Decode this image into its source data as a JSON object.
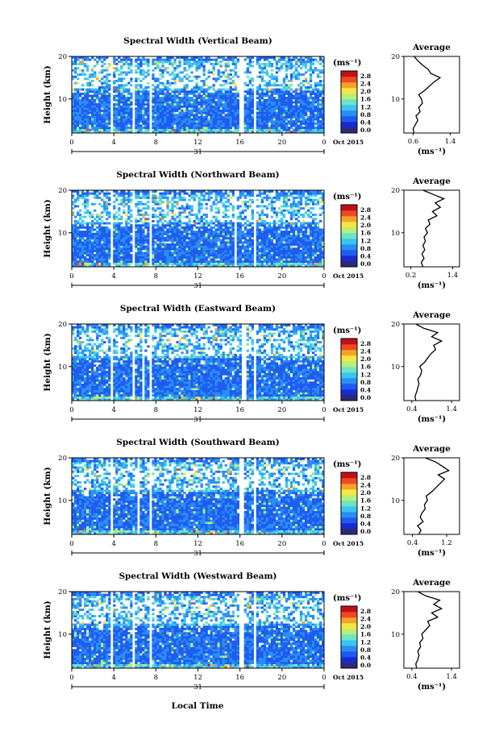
{
  "month_label": "Oct 2015",
  "date_label": "31",
  "xlabel": "Local Time",
  "ylabel": "Height (km)",
  "unit_label": "(ms⁻¹)",
  "avg_title": "Average",
  "avg_unit": "(ms⁻¹)",
  "colorbar_ticks": [
    "2.8",
    "2.4",
    "2.0",
    "1.6",
    "1.2",
    "0.8",
    "0.4",
    "0.0"
  ],
  "colorbar_colors": [
    "#2b2b75",
    "#1a2ad0",
    "#1e5cf0",
    "#2a8ef5",
    "#3bc4f2",
    "#6fe3c4",
    "#b5f07a",
    "#f5e642",
    "#f5a22a",
    "#ee4a1f",
    "#c0101a"
  ],
  "chart_data": [
    {
      "type": "heatmap",
      "title": "Spectral Width (Vertical Beam)",
      "x_ticks": [
        "0",
        "4",
        "8",
        "12",
        "16",
        "20",
        "0"
      ],
      "y_ticks": [
        "20",
        "10"
      ],
      "xlim": [
        0,
        24
      ],
      "ylim": [
        2,
        20
      ],
      "data_gaps_hours": [
        [
          3.6,
          3.9
        ],
        [
          5.8,
          6.0
        ],
        [
          7.4,
          7.7
        ],
        [
          16.0,
          16.4
        ],
        [
          17.3,
          17.5
        ]
      ],
      "average_profile": {
        "title": "Average",
        "x_ticks": [
          "0.6",
          "1.4"
        ],
        "y_ticks": [
          "20",
          "10"
        ],
        "xlim": [
          0.4,
          1.6
        ],
        "height_km": [
          2,
          3,
          4,
          5,
          6,
          7,
          8,
          9,
          10,
          11,
          12,
          13,
          14,
          15,
          16,
          17,
          18,
          19,
          20
        ],
        "width_ms": [
          0.62,
          0.6,
          0.65,
          0.7,
          0.66,
          0.75,
          0.72,
          0.8,
          0.78,
          0.72,
          0.85,
          0.95,
          1.05,
          1.18,
          0.98,
          0.92,
          0.8,
          0.7,
          0.62
        ]
      }
    },
    {
      "type": "heatmap",
      "title": "Spectral Width (Northward Beam)",
      "x_ticks": [
        "0",
        "4",
        "8",
        "12",
        "16",
        "20",
        "0"
      ],
      "y_ticks": [
        "20",
        "10"
      ],
      "xlim": [
        0,
        24
      ],
      "ylim": [
        2,
        20
      ],
      "data_gaps_hours": [
        [
          3.6,
          3.9
        ],
        [
          5.8,
          6.0
        ],
        [
          7.4,
          7.7
        ],
        [
          15.4,
          15.7
        ],
        [
          17.4,
          17.6
        ]
      ],
      "average_profile": {
        "title": "Average",
        "x_ticks": [
          "0.2",
          "1.4"
        ],
        "y_ticks": [
          "20",
          "10"
        ],
        "xlim": [
          0.0,
          1.6
        ],
        "height_km": [
          2,
          3,
          4,
          5,
          6,
          7,
          8,
          9,
          10,
          11,
          12,
          13,
          14,
          15,
          16,
          17,
          18,
          19,
          20
        ],
        "width_ms": [
          0.55,
          0.5,
          0.58,
          0.52,
          0.6,
          0.55,
          0.62,
          0.58,
          0.68,
          0.62,
          0.75,
          0.7,
          0.95,
          0.82,
          1.05,
          0.9,
          1.15,
          0.85,
          0.55
        ]
      }
    },
    {
      "type": "heatmap",
      "title": "Spectral Width (Eastward Beam)",
      "x_ticks": [
        "0",
        "4",
        "8",
        "12",
        "16",
        "20",
        "0"
      ],
      "y_ticks": [
        "20",
        "10"
      ],
      "xlim": [
        0,
        24
      ],
      "ylim": [
        2,
        20
      ],
      "data_gaps_hours": [
        [
          3.6,
          3.9
        ],
        [
          5.8,
          6.0
        ],
        [
          6.8,
          7.0
        ],
        [
          7.4,
          7.7
        ],
        [
          16.2,
          16.5
        ],
        [
          17.4,
          17.6
        ]
      ],
      "average_profile": {
        "title": "Average",
        "x_ticks": [
          "0.4",
          "1.4"
        ],
        "y_ticks": [
          "20",
          "10"
        ],
        "xlim": [
          0.2,
          1.6
        ],
        "height_km": [
          2,
          3,
          4,
          5,
          6,
          7,
          8,
          9,
          10,
          11,
          12,
          13,
          14,
          15,
          16,
          17,
          18,
          19,
          20
        ],
        "width_ms": [
          0.5,
          0.48,
          0.52,
          0.55,
          0.58,
          0.55,
          0.62,
          0.65,
          0.6,
          0.72,
          0.8,
          0.88,
          1.0,
          0.95,
          1.15,
          0.9,
          1.05,
          0.7,
          0.5
        ]
      }
    },
    {
      "type": "heatmap",
      "title": "Spectral Width (Southward Beam)",
      "x_ticks": [
        "0",
        "4",
        "8",
        "12",
        "16",
        "20",
        "0"
      ],
      "y_ticks": [
        "20",
        "10"
      ],
      "xlim": [
        0,
        24
      ],
      "ylim": [
        2,
        20
      ],
      "data_gaps_hours": [
        [
          3.6,
          3.9
        ],
        [
          6.2,
          6.4
        ],
        [
          7.4,
          7.7
        ],
        [
          16.0,
          16.4
        ],
        [
          17.4,
          17.6
        ]
      ],
      "average_profile": {
        "title": "Average",
        "x_ticks": [
          "0.4",
          "1.2"
        ],
        "y_ticks": [
          "20",
          "10"
        ],
        "xlim": [
          0.2,
          1.5
        ],
        "height_km": [
          2,
          3,
          4,
          5,
          6,
          7,
          8,
          9,
          10,
          11,
          12,
          13,
          14,
          15,
          16,
          17,
          18,
          19,
          20
        ],
        "width_ms": [
          0.55,
          0.6,
          0.52,
          0.65,
          0.58,
          0.62,
          0.7,
          0.68,
          0.75,
          0.72,
          0.85,
          0.95,
          1.05,
          1.15,
          1.0,
          1.25,
          1.1,
          0.95,
          0.7
        ]
      }
    },
    {
      "type": "heatmap",
      "title": "Spectral Width (Westward Beam)",
      "x_ticks": [
        "0",
        "4",
        "8",
        "12",
        "16",
        "20",
        "0"
      ],
      "y_ticks": [
        "20",
        "10"
      ],
      "xlim": [
        0,
        24
      ],
      "ylim": [
        2,
        20
      ],
      "data_gaps_hours": [
        [
          3.6,
          3.9
        ],
        [
          5.8,
          6.0
        ],
        [
          7.4,
          7.7
        ],
        [
          16.0,
          16.4
        ],
        [
          17.4,
          17.6
        ]
      ],
      "average_profile": {
        "title": "Average",
        "x_ticks": [
          "0.4",
          "1.4"
        ],
        "y_ticks": [
          "20",
          "10"
        ],
        "xlim": [
          0.2,
          1.6
        ],
        "height_km": [
          2,
          3,
          4,
          5,
          6,
          7,
          8,
          9,
          10,
          11,
          12,
          13,
          14,
          15,
          16,
          17,
          18,
          19,
          20
        ],
        "width_ms": [
          0.52,
          0.5,
          0.55,
          0.58,
          0.55,
          0.62,
          0.6,
          0.68,
          0.65,
          0.75,
          0.85,
          0.8,
          1.05,
          0.9,
          1.15,
          0.95,
          1.1,
          0.75,
          0.55
        ]
      }
    }
  ]
}
